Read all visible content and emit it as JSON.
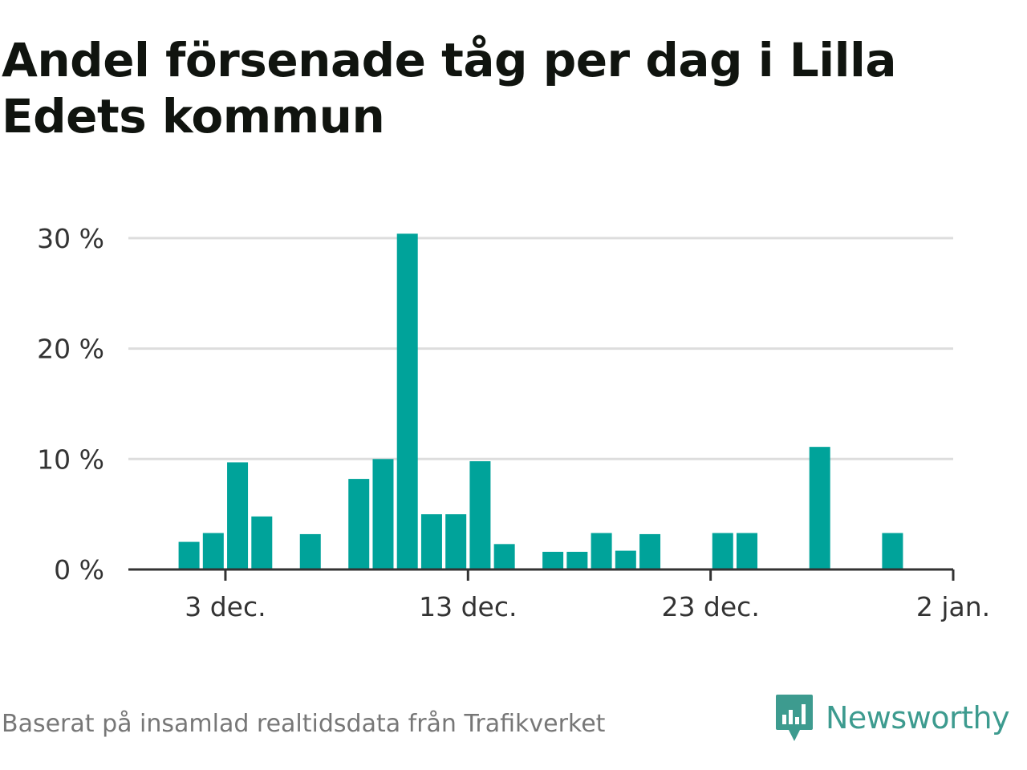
{
  "title": "Andel försenade tåg per dag i Lilla Edets kommun",
  "source": "Baserat på insamlad realtidsdata från Trafikverket",
  "brand": "Newsworthy",
  "colors": {
    "bar": "#00a39a",
    "grid": "#dddddd",
    "axis": "#333333",
    "title": "#10140f",
    "brand": "#3d9b8f",
    "source": "#777777"
  },
  "chart_data": {
    "type": "bar",
    "x_type": "date",
    "x_range": [
      "2022-11-29",
      "2023-01-02"
    ],
    "x": [
      "2022-12-01",
      "2022-12-02",
      "2022-12-03",
      "2022-12-04",
      "2022-12-05",
      "2022-12-06",
      "2022-12-07",
      "2022-12-08",
      "2022-12-09",
      "2022-12-10",
      "2022-12-11",
      "2022-12-12",
      "2022-12-13",
      "2022-12-14",
      "2022-12-15",
      "2022-12-16",
      "2022-12-17",
      "2022-12-18",
      "2022-12-19",
      "2022-12-20",
      "2022-12-21",
      "2022-12-22",
      "2022-12-23",
      "2022-12-24",
      "2022-12-25",
      "2022-12-26",
      "2022-12-27",
      "2022-12-28",
      "2022-12-29",
      "2022-12-30",
      "2022-12-31"
    ],
    "values": [
      2.5,
      3.3,
      9.7,
      4.8,
      0,
      3.2,
      0,
      8.2,
      10.0,
      30.4,
      5.0,
      5.0,
      9.8,
      2.3,
      0,
      1.6,
      1.6,
      3.3,
      1.7,
      3.2,
      0,
      0,
      3.3,
      3.3,
      0,
      0,
      11.1,
      0,
      0,
      3.3,
      0
    ],
    "ylim": [
      0,
      30.5
    ],
    "y_ticks": [
      0,
      10,
      20,
      30
    ],
    "y_tick_labels": [
      "0 %",
      "10 %",
      "20 %",
      "30 %"
    ],
    "x_ticks": [
      "2022-12-03",
      "2022-12-13",
      "2022-12-23",
      "2023-01-02"
    ],
    "x_tick_labels": [
      "3 dec.",
      "13 dec.",
      "23 dec.",
      "2 jan."
    ],
    "grid": true,
    "legend": "none",
    "xlabel": "",
    "ylabel": ""
  }
}
